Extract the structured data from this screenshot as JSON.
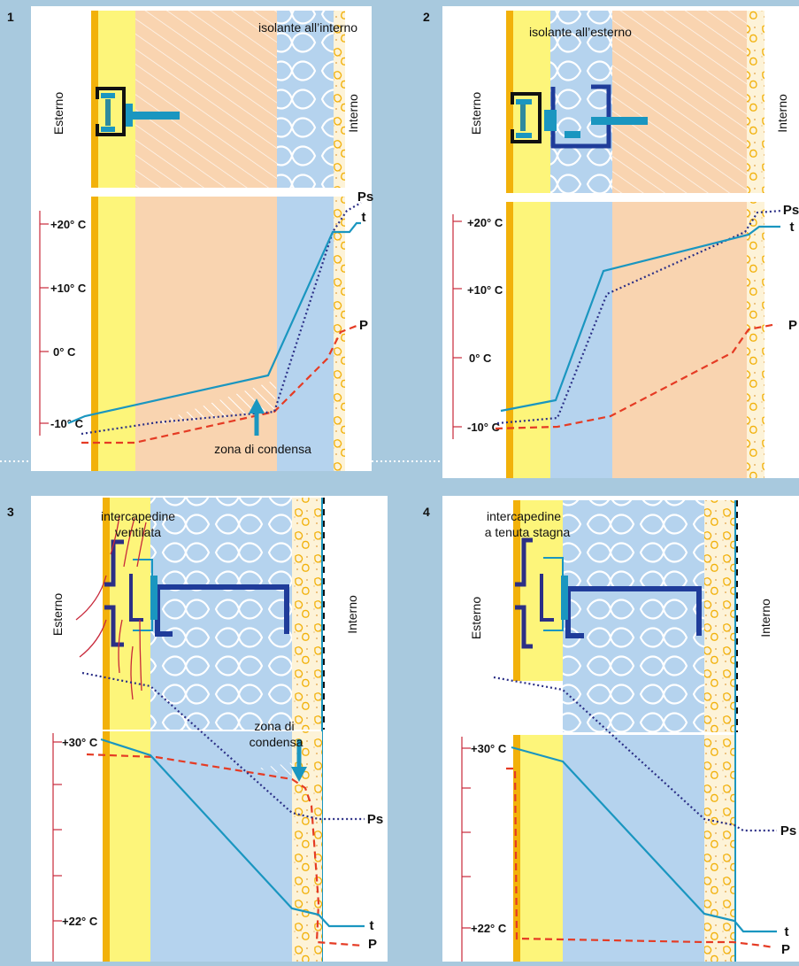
{
  "panels": [
    {
      "number": "1",
      "insulation_label": "isolante all’interno",
      "outside_label": "Esterno",
      "inside_label": "Interno",
      "temperature_ticks": [
        "+20° C",
        "+10° C",
        "0° C",
        "-10° C"
      ],
      "curve_labels": {
        "ps": "Ps",
        "t": "t",
        "p": "P"
      },
      "annotation": "zona di condensa"
    },
    {
      "number": "2",
      "insulation_label": "isolante all’esterno",
      "outside_label": "Esterno",
      "inside_label": "Interno",
      "temperature_ticks": [
        "+20° C",
        "+10° C",
        "0° C",
        "-10° C"
      ],
      "curve_labels": {
        "ps": "Ps",
        "t": "t",
        "p": "P"
      }
    },
    {
      "number": "3",
      "cavity_label_line1": "intercapedine",
      "cavity_label_line2": "ventilata",
      "outside_label": "Esterno",
      "inside_label": "Interno",
      "temperature_ticks": [
        "+30° C",
        "+22° C"
      ],
      "curve_labels": {
        "ps": "Ps",
        "t": "t",
        "p": "P"
      },
      "annotation_line1": "zona di",
      "annotation_line2": "condensa"
    },
    {
      "number": "4",
      "cavity_label_line1": "intercapedine",
      "cavity_label_line2": "a tenuta stagna",
      "outside_label": "Esterno",
      "inside_label": "Interno",
      "temperature_ticks": [
        "+30° C",
        "+22° C"
      ],
      "curve_labels": {
        "ps": "Ps",
        "t": "t",
        "p": "P"
      }
    }
  ],
  "colors": {
    "background": "#a8c9de",
    "cladding": "#fdf57a",
    "cladding_edge": "#f2b10a",
    "masonry": "#f9d4b0",
    "insulation": "#b5d3ee",
    "plaster": "#fdf3d8",
    "temperature_curve": "#1a96c0",
    "saturation_pressure_curve": "#2b2f86",
    "vapour_pressure_curve": "#e53b24",
    "scale_red": "#c8283a",
    "bracket": "#1f3c9a"
  }
}
